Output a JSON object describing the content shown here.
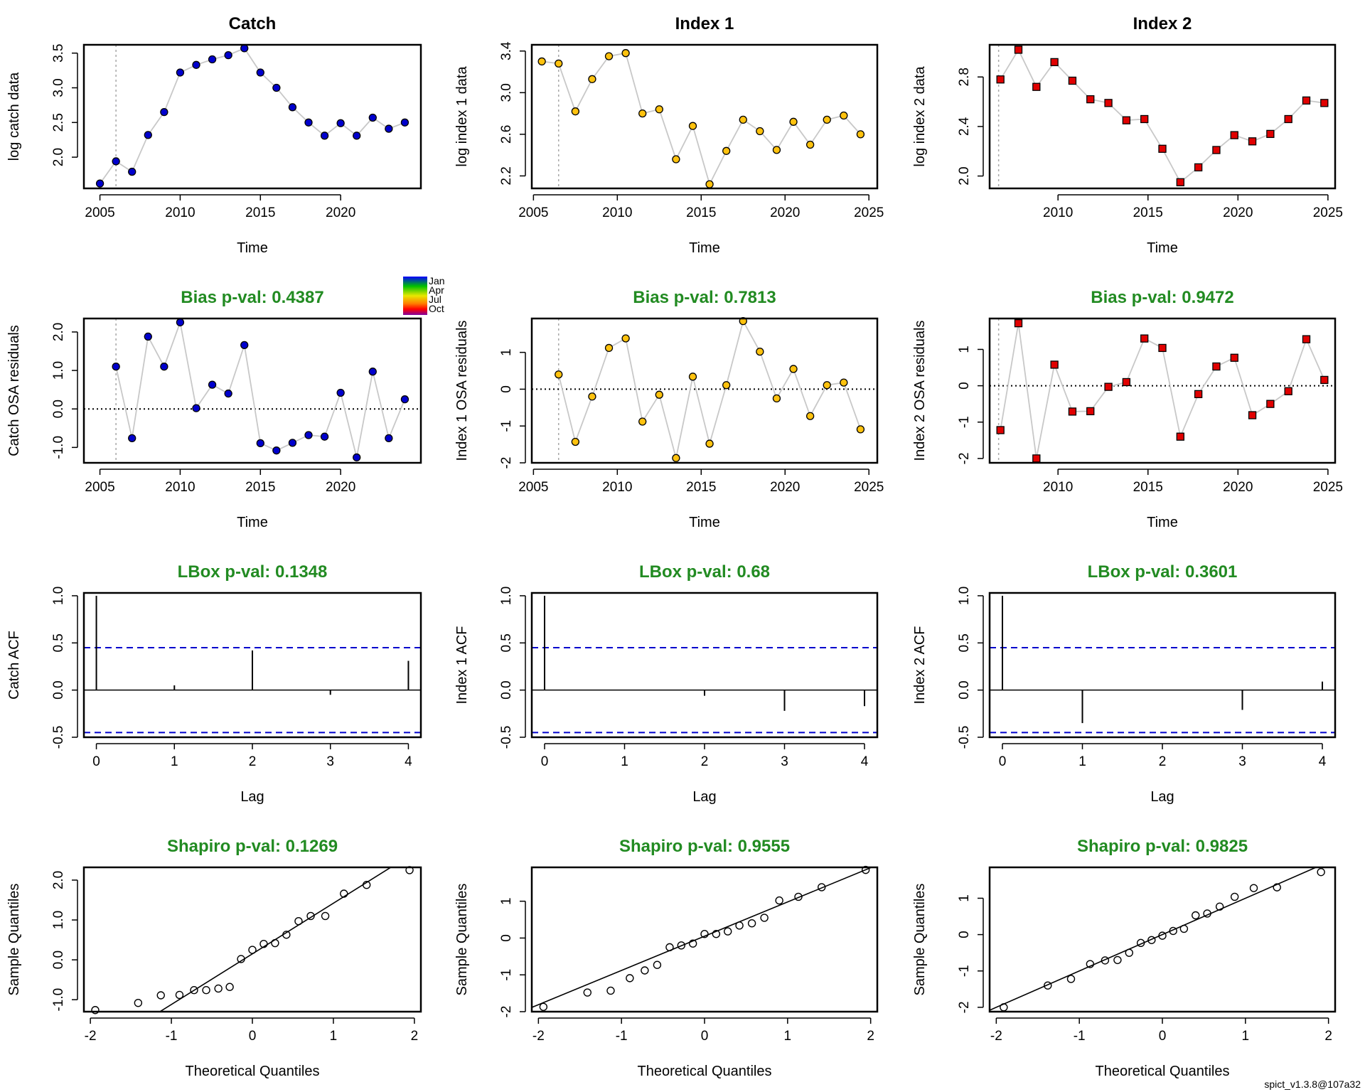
{
  "colors": {
    "catch_point": "#0000CD",
    "index1_point": "#FFC20E",
    "index2_point": "#E10000",
    "title_green": "#228B22",
    "line_grey": "#C8C8C8",
    "conf_blue": "#0000CD"
  },
  "legend": {
    "labels": [
      "Jan",
      "Apr",
      "Jul",
      "Oct"
    ],
    "gradient": [
      "#0000FF",
      "#00C000",
      "#E8E800",
      "#FF8000",
      "#FF0000",
      "#8000A0"
    ]
  },
  "footer": "spict_v1.3.8@107a32",
  "chart_data": [
    {
      "id": "catch-data",
      "type": "line",
      "title": "Catch",
      "xlabel": "Time",
      "ylabel": "log catch data",
      "xlim": [
        2004,
        2025
      ],
      "ylim": [
        1.55,
        3.62
      ],
      "xticks": [
        2005,
        2010,
        2015,
        2020
      ],
      "yticks": [
        2.0,
        2.5,
        3.0,
        3.5
      ],
      "ytick_labels": [
        "2.0",
        "2.5",
        "3.0",
        "3.5"
      ],
      "vline": 2006,
      "marker": "circle",
      "color": "#0000CD",
      "x": [
        2005,
        2006,
        2007,
        2008,
        2009,
        2010,
        2011,
        2012,
        2013,
        2014,
        2015,
        2016,
        2017,
        2018,
        2019,
        2020,
        2021,
        2022,
        2023,
        2024
      ],
      "y": [
        1.62,
        1.94,
        1.79,
        2.32,
        2.65,
        3.22,
        3.33,
        3.41,
        3.47,
        3.57,
        3.22,
        3.0,
        2.72,
        2.5,
        2.31,
        2.49,
        2.31,
        2.57,
        2.41,
        2.5
      ]
    },
    {
      "id": "index1-data",
      "type": "line",
      "title": "Index 1",
      "xlabel": "Time",
      "ylabel": "log index 1 data",
      "xlim": [
        2004.9,
        2025.5
      ],
      "ylim": [
        2.08,
        3.46
      ],
      "xticks": [
        2005,
        2010,
        2015,
        2020,
        2025
      ],
      "yticks": [
        2.2,
        2.6,
        3.0,
        3.4
      ],
      "ytick_labels": [
        "2.2",
        "2.6",
        "3.0",
        "3.4"
      ],
      "vline": 2006.5,
      "marker": "circle",
      "color": "#FFC20E",
      "x": [
        2005.5,
        2006.5,
        2007.5,
        2008.5,
        2009.5,
        2010.5,
        2011.5,
        2012.5,
        2013.5,
        2014.5,
        2015.5,
        2016.5,
        2017.5,
        2018.5,
        2019.5,
        2020.5,
        2021.5,
        2022.5,
        2023.5,
        2024.5
      ],
      "y": [
        3.3,
        3.28,
        2.82,
        3.13,
        3.35,
        3.38,
        2.8,
        2.84,
        2.36,
        2.68,
        2.12,
        2.44,
        2.74,
        2.63,
        2.45,
        2.72,
        2.5,
        2.74,
        2.78,
        2.6
      ]
    },
    {
      "id": "index2-data",
      "type": "line",
      "title": "Index 2",
      "xlabel": "Time",
      "ylabel": "log index 2 data",
      "xlim": [
        2006.2,
        2025.4
      ],
      "ylim": [
        1.9,
        3.06
      ],
      "xticks": [
        2010,
        2015,
        2020,
        2025
      ],
      "yticks": [
        2.0,
        2.4,
        2.8
      ],
      "ytick_labels": [
        "2.0",
        "2.4",
        "2.8"
      ],
      "vline": 2006.7,
      "marker": "square",
      "color": "#E10000",
      "x": [
        2006.8,
        2007.8,
        2008.8,
        2009.8,
        2010.8,
        2011.8,
        2012.8,
        2013.8,
        2014.8,
        2015.8,
        2016.8,
        2017.8,
        2018.8,
        2019.8,
        2020.8,
        2021.8,
        2022.8,
        2023.8,
        2024.8
      ],
      "y": [
        2.78,
        3.02,
        2.72,
        2.92,
        2.77,
        2.62,
        2.59,
        2.45,
        2.46,
        2.22,
        1.95,
        2.07,
        2.21,
        2.33,
        2.28,
        2.34,
        2.46,
        2.61,
        2.59
      ]
    },
    {
      "id": "catch-osa",
      "type": "line",
      "title": "Bias p-val: 0.4387",
      "xlabel": "Time",
      "ylabel": "Catch OSA residuals",
      "xlim": [
        2004,
        2025
      ],
      "ylim": [
        -1.4,
        2.35
      ],
      "xticks": [
        2005,
        2010,
        2015,
        2020
      ],
      "yticks": [
        -1.0,
        0.0,
        1.0,
        2.0
      ],
      "ytick_labels": [
        "-1.0",
        "0.0",
        "1.0",
        "2.0"
      ],
      "vline": 2006,
      "hline": 0,
      "marker": "circle",
      "color": "#0000CD",
      "x": [
        2006,
        2007,
        2008,
        2009,
        2010,
        2011,
        2012,
        2013,
        2014,
        2015,
        2016,
        2017,
        2018,
        2019,
        2020,
        2021,
        2022,
        2023,
        2024
      ],
      "y": [
        1.1,
        -0.76,
        1.88,
        1.1,
        2.25,
        0.02,
        0.63,
        0.4,
        1.66,
        -0.89,
        -1.08,
        -0.88,
        -0.68,
        -0.72,
        0.42,
        -1.26,
        0.97,
        -0.76,
        0.25
      ]
    },
    {
      "id": "index1-osa",
      "type": "line",
      "title": "Bias p-val: 0.7813",
      "xlabel": "Time",
      "ylabel": "Index 1 OSA residuals",
      "xlim": [
        2004.9,
        2025.5
      ],
      "ylim": [
        -2.0,
        1.92
      ],
      "xticks": [
        2005,
        2010,
        2015,
        2020,
        2025
      ],
      "yticks": [
        -2,
        -1,
        0,
        1
      ],
      "ytick_labels": [
        "-2",
        "-1",
        "0",
        "1"
      ],
      "vline": 2006.5,
      "hline": 0,
      "marker": "circle",
      "color": "#FFC20E",
      "x": [
        2006.5,
        2007.5,
        2008.5,
        2009.5,
        2010.5,
        2011.5,
        2012.5,
        2013.5,
        2014.5,
        2015.5,
        2016.5,
        2017.5,
        2018.5,
        2019.5,
        2020.5,
        2021.5,
        2022.5,
        2023.5,
        2024.5
      ],
      "y": [
        0.4,
        -1.43,
        -0.2,
        1.12,
        1.38,
        -0.88,
        -0.15,
        -1.87,
        0.34,
        -1.48,
        0.11,
        1.85,
        1.02,
        -0.25,
        0.55,
        -0.73,
        0.11,
        0.18,
        -1.09
      ]
    },
    {
      "id": "index2-osa",
      "type": "line",
      "title": "Bias p-val: 0.9472",
      "xlabel": "Time",
      "ylabel": "Index 2 OSA residuals",
      "xlim": [
        2006.2,
        2025.4
      ],
      "ylim": [
        -2.12,
        1.85
      ],
      "xticks": [
        2010,
        2015,
        2020,
        2025
      ],
      "yticks": [
        -2,
        -1,
        0,
        1
      ],
      "ytick_labels": [
        "-2",
        "-1",
        "0",
        "1"
      ],
      "vline": 2006.7,
      "hline": 0,
      "marker": "square",
      "color": "#E10000",
      "x": [
        2006.8,
        2007.8,
        2008.8,
        2009.8,
        2010.8,
        2011.8,
        2012.8,
        2013.8,
        2014.8,
        2015.8,
        2016.8,
        2017.8,
        2018.8,
        2019.8,
        2020.8,
        2021.8,
        2022.8,
        2023.8,
        2024.8
      ],
      "y": [
        -1.22,
        1.72,
        -2.0,
        0.58,
        -0.71,
        -0.7,
        -0.03,
        0.1,
        1.3,
        1.04,
        -1.4,
        -0.23,
        0.53,
        0.77,
        -0.81,
        -0.5,
        -0.15,
        1.28,
        0.16
      ]
    },
    {
      "id": "catch-acf",
      "type": "bar",
      "title": "LBox p-val: 0.1348",
      "xlabel": "Lag",
      "ylabel": "Catch ACF",
      "xlim": [
        -0.16,
        4.16
      ],
      "ylim": [
        -0.5,
        1.03
      ],
      "xticks": [
        0,
        1,
        2,
        3,
        4
      ],
      "yticks": [
        -0.5,
        0.0,
        0.5,
        1.0
      ],
      "ytick_labels": [
        "-0.5",
        "0.0",
        "0.5",
        "1.0"
      ],
      "hline": 0,
      "conf": 0.45,
      "lags": [
        0,
        1,
        2,
        3,
        4
      ],
      "values": [
        1.0,
        0.05,
        0.42,
        -0.05,
        0.31
      ]
    },
    {
      "id": "index1-acf",
      "type": "bar",
      "title": "LBox p-val: 0.68",
      "xlabel": "Lag",
      "ylabel": "Index 1 ACF",
      "xlim": [
        -0.16,
        4.16
      ],
      "ylim": [
        -0.5,
        1.03
      ],
      "xticks": [
        0,
        1,
        2,
        3,
        4
      ],
      "yticks": [
        -0.5,
        0.0,
        0.5,
        1.0
      ],
      "ytick_labels": [
        "-0.5",
        "0.0",
        "0.5",
        "1.0"
      ],
      "hline": 0,
      "conf": 0.45,
      "lags": [
        0,
        1,
        2,
        3,
        4
      ],
      "values": [
        1.0,
        0.0,
        -0.06,
        -0.22,
        -0.17
      ]
    },
    {
      "id": "index2-acf",
      "type": "bar",
      "title": "LBox p-val: 0.3601",
      "xlabel": "Lag",
      "ylabel": "Index 2 ACF",
      "xlim": [
        -0.16,
        4.16
      ],
      "ylim": [
        -0.5,
        1.03
      ],
      "xticks": [
        0,
        1,
        2,
        3,
        4
      ],
      "yticks": [
        -0.5,
        0.0,
        0.5,
        1.0
      ],
      "ytick_labels": [
        "-0.5",
        "0.0",
        "0.5",
        "1.0"
      ],
      "hline": 0,
      "conf": 0.45,
      "lags": [
        0,
        1,
        2,
        3,
        4
      ],
      "values": [
        1.0,
        -0.35,
        0.0,
        -0.21,
        0.09
      ]
    },
    {
      "id": "catch-qq",
      "type": "scatter",
      "title": "Shapiro p-val: 0.1269",
      "xlabel": "Theoretical Quantiles",
      "ylabel": "Sample Quantiles",
      "xlim": [
        -2.08,
        2.08
      ],
      "ylim": [
        -1.3,
        2.32
      ],
      "xticks": [
        -2,
        -1,
        0,
        1,
        2
      ],
      "xtick_labels": [
        "-2",
        "-1",
        "0",
        "1",
        "2"
      ],
      "yticks": [
        -1.0,
        0.0,
        1.0,
        2.0
      ],
      "ytick_labels": [
        "-1.0",
        "0.0",
        "1.0",
        "2.0"
      ],
      "qqline": [
        0.15,
        1.27
      ],
      "x": [
        -1.94,
        -1.41,
        -1.13,
        -0.9,
        -0.72,
        -0.57,
        -0.42,
        -0.28,
        -0.14,
        0.0,
        0.14,
        0.28,
        0.42,
        0.57,
        0.72,
        0.9,
        1.13,
        1.41,
        1.94
      ],
      "y": [
        -1.26,
        -1.08,
        -0.89,
        -0.88,
        -0.76,
        -0.76,
        -0.72,
        -0.68,
        0.02,
        0.25,
        0.4,
        0.42,
        0.63,
        0.97,
        1.1,
        1.1,
        1.66,
        1.88,
        2.25
      ]
    },
    {
      "id": "index1-qq",
      "type": "scatter",
      "title": "Shapiro p-val: 0.9555",
      "xlabel": "Theoretical Quantiles",
      "ylabel": "Sample Quantiles",
      "xlim": [
        -2.08,
        2.08
      ],
      "ylim": [
        -2.0,
        1.92
      ],
      "xticks": [
        -2,
        -1,
        0,
        1,
        2
      ],
      "xtick_labels": [
        "-2",
        "-1",
        "0",
        "1",
        "2"
      ],
      "yticks": [
        -2,
        -1,
        0,
        1
      ],
      "ytick_labels": [
        "-2",
        "-1",
        "0",
        "1"
      ],
      "qqline": [
        0.05,
        0.93
      ],
      "x": [
        -1.94,
        -1.41,
        -1.13,
        -0.9,
        -0.72,
        -0.57,
        -0.42,
        -0.28,
        -0.14,
        0.0,
        0.14,
        0.28,
        0.42,
        0.57,
        0.72,
        0.9,
        1.13,
        1.41,
        1.94
      ],
      "y": [
        -1.87,
        -1.48,
        -1.43,
        -1.09,
        -0.88,
        -0.73,
        -0.25,
        -0.2,
        -0.15,
        0.11,
        0.11,
        0.18,
        0.34,
        0.4,
        0.55,
        1.02,
        1.12,
        1.38,
        1.85
      ]
    },
    {
      "id": "index2-qq",
      "type": "scatter",
      "title": "Shapiro p-val: 0.9825",
      "xlabel": "Theoretical Quantiles",
      "ylabel": "Sample Quantiles",
      "xlim": [
        -2.08,
        2.08
      ],
      "ylim": [
        -2.12,
        1.85
      ],
      "xticks": [
        -2,
        -1,
        0,
        1,
        2
      ],
      "xtick_labels": [
        "-2",
        "-1",
        "0",
        "1",
        "2"
      ],
      "yticks": [
        -2,
        -1,
        0,
        1
      ],
      "ytick_labels": [
        "-2",
        "-1",
        "0",
        "1"
      ],
      "qqline": [
        0.0,
        1.0
      ],
      "x": [
        -1.91,
        -1.38,
        -1.1,
        -0.87,
        -0.69,
        -0.54,
        -0.4,
        -0.26,
        -0.13,
        0.0,
        0.13,
        0.26,
        0.4,
        0.54,
        0.69,
        0.87,
        1.1,
        1.38,
        1.91
      ],
      "y": [
        -2.0,
        -1.4,
        -1.22,
        -0.81,
        -0.71,
        -0.7,
        -0.5,
        -0.23,
        -0.15,
        -0.03,
        0.1,
        0.16,
        0.53,
        0.58,
        0.77,
        1.04,
        1.28,
        1.3,
        1.72
      ]
    }
  ]
}
